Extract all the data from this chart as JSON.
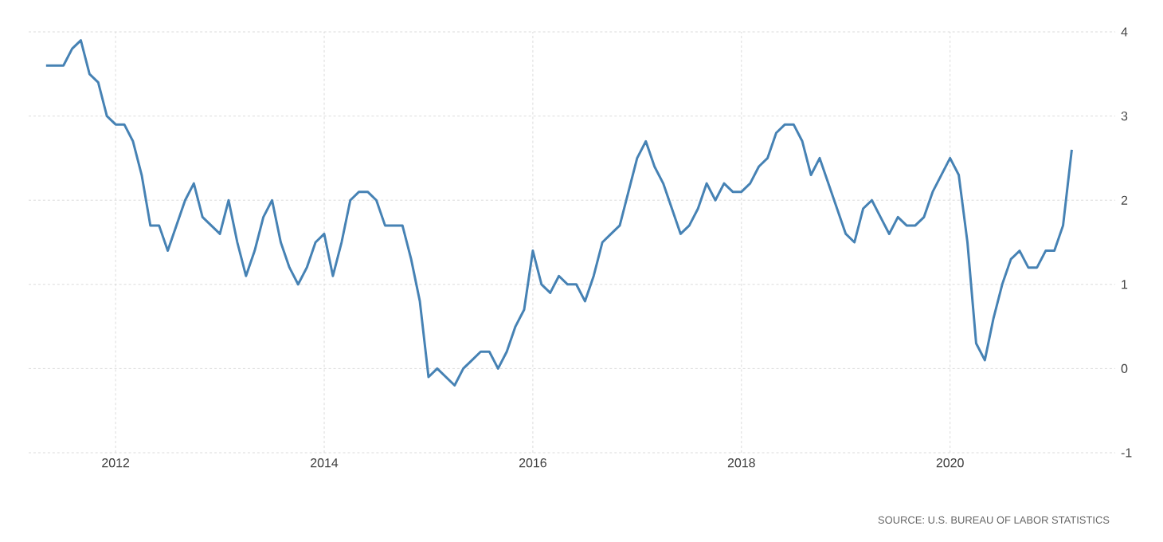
{
  "chart_data": {
    "type": "line",
    "x": [
      "2011-05",
      "2011-06",
      "2011-07",
      "2011-08",
      "2011-09",
      "2011-10",
      "2011-11",
      "2011-12",
      "2012-01",
      "2012-02",
      "2012-03",
      "2012-04",
      "2012-05",
      "2012-06",
      "2012-07",
      "2012-08",
      "2012-09",
      "2012-10",
      "2012-11",
      "2012-12",
      "2013-01",
      "2013-02",
      "2013-03",
      "2013-04",
      "2013-05",
      "2013-06",
      "2013-07",
      "2013-08",
      "2013-09",
      "2013-10",
      "2013-11",
      "2013-12",
      "2014-01",
      "2014-02",
      "2014-03",
      "2014-04",
      "2014-05",
      "2014-06",
      "2014-07",
      "2014-08",
      "2014-09",
      "2014-10",
      "2014-11",
      "2014-12",
      "2015-01",
      "2015-02",
      "2015-03",
      "2015-04",
      "2015-05",
      "2015-06",
      "2015-07",
      "2015-08",
      "2015-09",
      "2015-10",
      "2015-11",
      "2015-12",
      "2016-01",
      "2016-02",
      "2016-03",
      "2016-04",
      "2016-05",
      "2016-06",
      "2016-07",
      "2016-08",
      "2016-09",
      "2016-10",
      "2016-11",
      "2016-12",
      "2017-01",
      "2017-02",
      "2017-03",
      "2017-04",
      "2017-05",
      "2017-06",
      "2017-07",
      "2017-08",
      "2017-09",
      "2017-10",
      "2017-11",
      "2017-12",
      "2018-01",
      "2018-02",
      "2018-03",
      "2018-04",
      "2018-05",
      "2018-06",
      "2018-07",
      "2018-08",
      "2018-09",
      "2018-10",
      "2018-11",
      "2018-12",
      "2019-01",
      "2019-02",
      "2019-03",
      "2019-04",
      "2019-05",
      "2019-06",
      "2019-07",
      "2019-08",
      "2019-09",
      "2019-10",
      "2019-11",
      "2019-12",
      "2020-01",
      "2020-02",
      "2020-03",
      "2020-04",
      "2020-05",
      "2020-06",
      "2020-07",
      "2020-08",
      "2020-09",
      "2020-10",
      "2020-11",
      "2020-12",
      "2021-01",
      "2021-02",
      "2021-03"
    ],
    "series": [
      {
        "color": "#4682b4",
        "values": [
          3.6,
          3.6,
          3.6,
          3.8,
          3.9,
          3.5,
          3.4,
          3.0,
          2.9,
          2.9,
          2.7,
          2.3,
          1.7,
          1.7,
          1.4,
          1.7,
          2.0,
          2.2,
          1.8,
          1.7,
          1.6,
          2.0,
          1.5,
          1.1,
          1.4,
          1.8,
          2.0,
          1.5,
          1.2,
          1.0,
          1.2,
          1.5,
          1.6,
          1.1,
          1.5,
          2.0,
          2.1,
          2.1,
          2.0,
          1.7,
          1.7,
          1.7,
          1.3,
          0.8,
          -0.1,
          0.0,
          -0.1,
          -0.2,
          0.0,
          0.1,
          0.2,
          0.2,
          0.0,
          0.2,
          0.5,
          0.7,
          1.4,
          1.0,
          0.9,
          1.1,
          1.0,
          1.0,
          0.8,
          1.1,
          1.5,
          1.6,
          1.7,
          2.1,
          2.5,
          2.7,
          2.4,
          2.2,
          1.9,
          1.6,
          1.7,
          1.9,
          2.2,
          2.0,
          2.2,
          2.1,
          2.1,
          2.2,
          2.4,
          2.5,
          2.8,
          2.9,
          2.9,
          2.7,
          2.3,
          2.5,
          2.2,
          1.9,
          1.6,
          1.5,
          1.9,
          2.0,
          1.8,
          1.6,
          1.8,
          1.7,
          1.7,
          1.8,
          2.1,
          2.3,
          2.5,
          2.3,
          1.5,
          0.3,
          0.1,
          0.6,
          1.0,
          1.3,
          1.4,
          1.2,
          1.2,
          1.4,
          1.4,
          1.7,
          2.6
        ]
      }
    ],
    "xlim": [
      "2011-03",
      "2021-08"
    ],
    "xticks": [
      "2012",
      "2014",
      "2016",
      "2018",
      "2020"
    ],
    "ylim": [
      -1,
      4
    ],
    "yticks": [
      -1,
      0,
      1,
      2,
      3,
      4
    ],
    "grid": true,
    "marker": "none",
    "line_style": "solid",
    "annotations": [
      "SOURCE: U.S. BUREAU OF LABOR STATISTICS"
    ]
  }
}
